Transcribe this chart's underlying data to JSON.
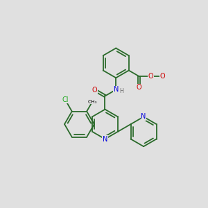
{
  "bg": "#e0e0e0",
  "bc": "#2a6a2a",
  "bw": 1.3,
  "dbl_off": 0.055,
  "atom_colors": {
    "N": "#0000dd",
    "O": "#cc0000",
    "Cl": "#22aa22",
    "H": "#666666"
  },
  "fs": 7.0,
  "fss": 5.8,
  "BL": 0.72
}
